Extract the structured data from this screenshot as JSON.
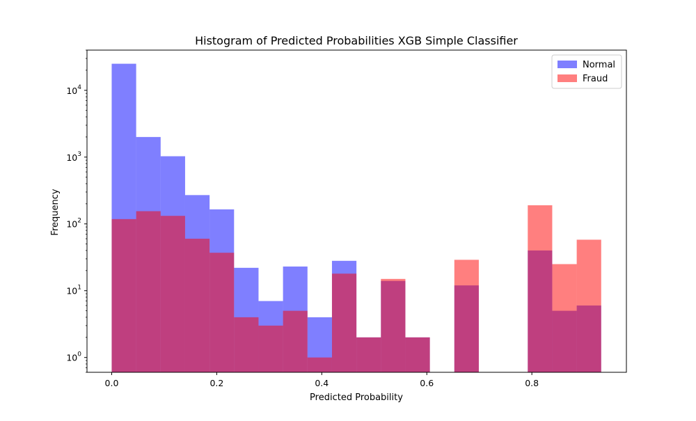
{
  "chart_data": {
    "type": "bar",
    "title": "Histogram of Predicted Probabilities XGB Simple Classifier",
    "xlabel": "Predicted Probability",
    "ylabel": "Frequency",
    "xlim": [
      -0.047,
      0.98
    ],
    "ylim": [
      0.6,
      40000
    ],
    "y_scale": "log",
    "grid": false,
    "legend_position": "top-right",
    "x_ticks": [
      {
        "value": 0.0,
        "label": "0.0"
      },
      {
        "value": 0.2,
        "label": "0.2"
      },
      {
        "value": 0.4,
        "label": "0.4"
      },
      {
        "value": 0.6,
        "label": "0.6"
      },
      {
        "value": 0.8,
        "label": "0.8"
      }
    ],
    "y_ticks": [
      {
        "value": 1,
        "base": "10",
        "exp": "0"
      },
      {
        "value": 10,
        "base": "10",
        "exp": "1"
      },
      {
        "value": 100,
        "base": "10",
        "exp": "2"
      },
      {
        "value": 1000,
        "base": "10",
        "exp": "3"
      },
      {
        "value": 10000,
        "base": "10",
        "exp": "4"
      }
    ],
    "bin_edges": [
      0.0,
      0.0466,
      0.0932,
      0.1398,
      0.1864,
      0.233,
      0.2796,
      0.3262,
      0.3728,
      0.4194,
      0.466,
      0.5126,
      0.5592,
      0.6058,
      0.6524,
      0.699,
      0.7456,
      0.7922,
      0.8388,
      0.8854,
      0.932
    ],
    "series": [
      {
        "name": "Normal",
        "color": "#0000ff",
        "opacity": 0.5,
        "values": [
          25000,
          2000,
          1030,
          270,
          165,
          22,
          7,
          23,
          4,
          28,
          2,
          14,
          2,
          0,
          12,
          0,
          0,
          40,
          5,
          6
        ]
      },
      {
        "name": "Fraud",
        "color": "#ff0000",
        "opacity": 0.5,
        "values": [
          118,
          155,
          132,
          60,
          37,
          4,
          3,
          5,
          1,
          18,
          2,
          15,
          2,
          0,
          29,
          0,
          0,
          190,
          25,
          58
        ]
      }
    ]
  }
}
